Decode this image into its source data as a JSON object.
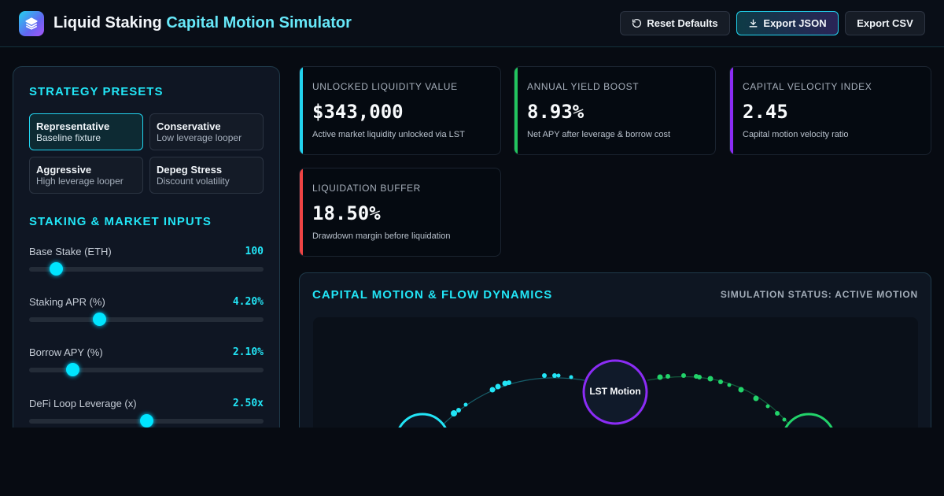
{
  "header": {
    "title_main": "Liquid Staking",
    "title_accent": "Capital Motion Simulator",
    "reset_label": "Reset Defaults",
    "export_json_label": "Export JSON",
    "export_csv_label": "Export CSV",
    "icons": {
      "logo": "layers-icon",
      "reset": "rotate-ccw-icon",
      "export": "download-icon"
    }
  },
  "sidebar": {
    "presets_title": "STRATEGY PRESETS",
    "presets": [
      {
        "name": "Representative",
        "desc": "Baseline fixture",
        "active": true
      },
      {
        "name": "Conservative",
        "desc": "Low leverage looper",
        "active": false
      },
      {
        "name": "Aggressive",
        "desc": "High leverage looper",
        "active": false
      },
      {
        "name": "Depeg Stress",
        "desc": "Discount volatility",
        "active": false
      }
    ],
    "inputs_title": "STAKING & MARKET INPUTS",
    "inputs": [
      {
        "label": "Base Stake (ETH)",
        "value": "100",
        "fraction": 0.115
      },
      {
        "label": "Staking APR (%)",
        "value": "4.20%",
        "fraction": 0.3
      },
      {
        "label": "Borrow APY (%)",
        "value": "2.10%",
        "fraction": 0.185
      },
      {
        "label": "DeFi Loop Leverage (x)",
        "value": "2.50x",
        "fraction": 0.5
      }
    ]
  },
  "metrics": [
    {
      "title": "UNLOCKED LIQUIDITY VALUE",
      "value": "$343,000",
      "desc": "Active market liquidity unlocked via LST",
      "color": "#22d3ee"
    },
    {
      "title": "ANNUAL YIELD BOOST",
      "value": "8.93%",
      "desc": "Net APY after leverage & borrow cost",
      "color": "#22c55e"
    },
    {
      "title": "CAPITAL VELOCITY INDEX",
      "value": "2.45",
      "desc": "Capital motion velocity ratio",
      "color": "#8b2cf5"
    },
    {
      "title": "LIQUIDATION BUFFER",
      "value": "18.50%",
      "desc": "Drawdown margin before liquidation",
      "color": "#ef4444"
    }
  ],
  "flow": {
    "title": "CAPITAL MOTION & FLOW DYNAMICS",
    "status": "SIMULATION STATUS: ACTIVE MOTION",
    "center_node": "LST Motion"
  },
  "colors": {
    "accent": "#22e5f6",
    "green": "#22c55e",
    "purple": "#8b2cf5",
    "red": "#ef4444"
  }
}
